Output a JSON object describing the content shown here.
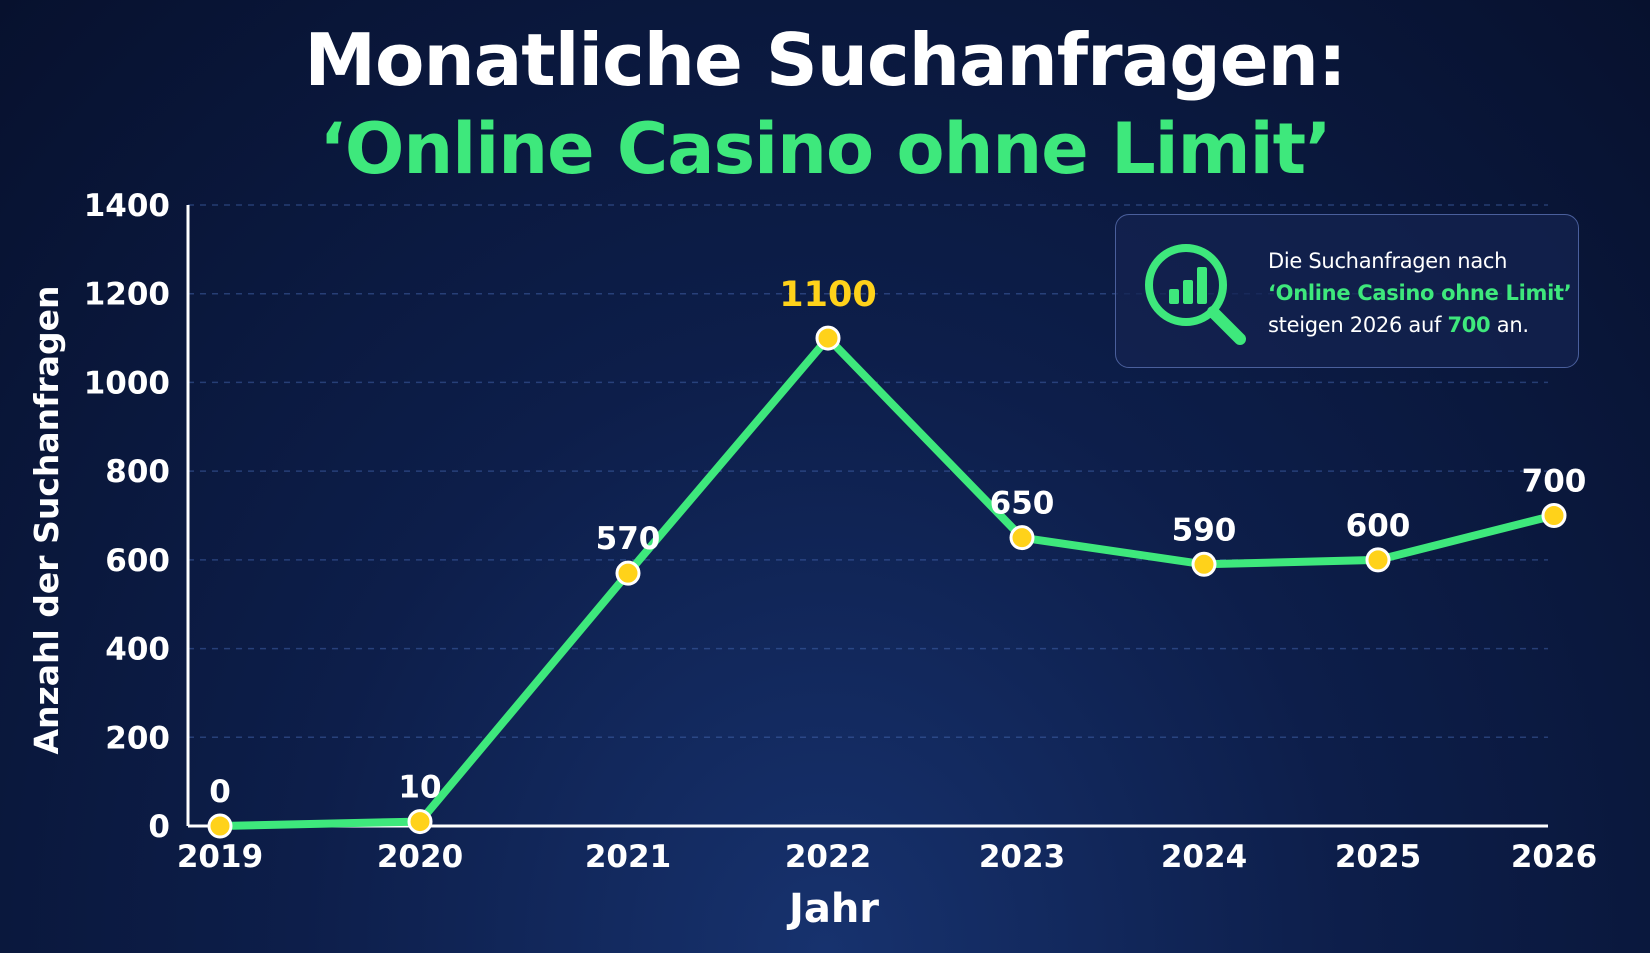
{
  "title_line1": "Monatliche Suchanfragen:",
  "title_line2": "‘Online Casino ohne Limit’",
  "info_box": {
    "icon": "magnifier-bar-chart-icon",
    "line1": "Die Suchanfragen nach",
    "line2": "‘Online Casino ohne Limit’",
    "line3_prefix": "steigen 2026 auf ",
    "line3_value": "700",
    "line3_suffix": " an."
  },
  "colors": {
    "line": "#3ee87c",
    "marker": "#ffd21a",
    "peak_label": "#ffd21a",
    "text": "#ffffff",
    "background": "#0d1e4a"
  },
  "chart_data": {
    "type": "line",
    "title": "Monatliche Suchanfragen: ‘Online Casino ohne Limit’",
    "xlabel": "Jahr",
    "ylabel": "Anzahl der Suchanfragen",
    "categories": [
      "2019",
      "2020",
      "2021",
      "2022",
      "2023",
      "2024",
      "2025",
      "2026"
    ],
    "values": [
      0,
      10,
      570,
      1100,
      650,
      590,
      600,
      700
    ],
    "yticks": [
      "0",
      "200",
      "400",
      "600",
      "800",
      "1000",
      "1200",
      "1400"
    ],
    "ylim": [
      0,
      1400
    ],
    "grid": "horizontal dashed",
    "peak_category": "2022"
  }
}
